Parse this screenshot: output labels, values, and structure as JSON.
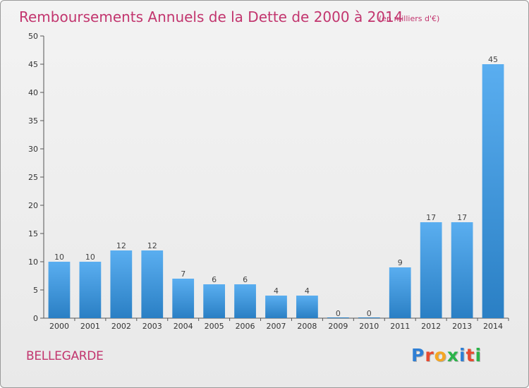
{
  "chart_data": {
    "type": "bar",
    "title": "Remboursements Annuels de la Dette de 2000 à 2014",
    "subtitle": "(en milliers d'€)",
    "categories": [
      "2000",
      "2001",
      "2002",
      "2003",
      "2004",
      "2005",
      "2006",
      "2007",
      "2008",
      "2009",
      "2010",
      "2011",
      "2012",
      "2013",
      "2014"
    ],
    "values": [
      10,
      10,
      12,
      12,
      7,
      6,
      6,
      4,
      4,
      0,
      0,
      9,
      17,
      17,
      45
    ],
    "ylim": [
      0,
      50
    ],
    "yticks": [
      0,
      5,
      10,
      15,
      20,
      25,
      30,
      35,
      40,
      45,
      50
    ],
    "bar_color": "#3a8fd6",
    "grid": false
  },
  "commune": "BELLEGARDE",
  "logo": {
    "text": "Proxiti",
    "letter_colors": [
      "#2f7fd4",
      "#e8492f",
      "#f5a623",
      "#2bb34a",
      "#2f7fd4",
      "#e8492f",
      "#2bb34a"
    ]
  }
}
